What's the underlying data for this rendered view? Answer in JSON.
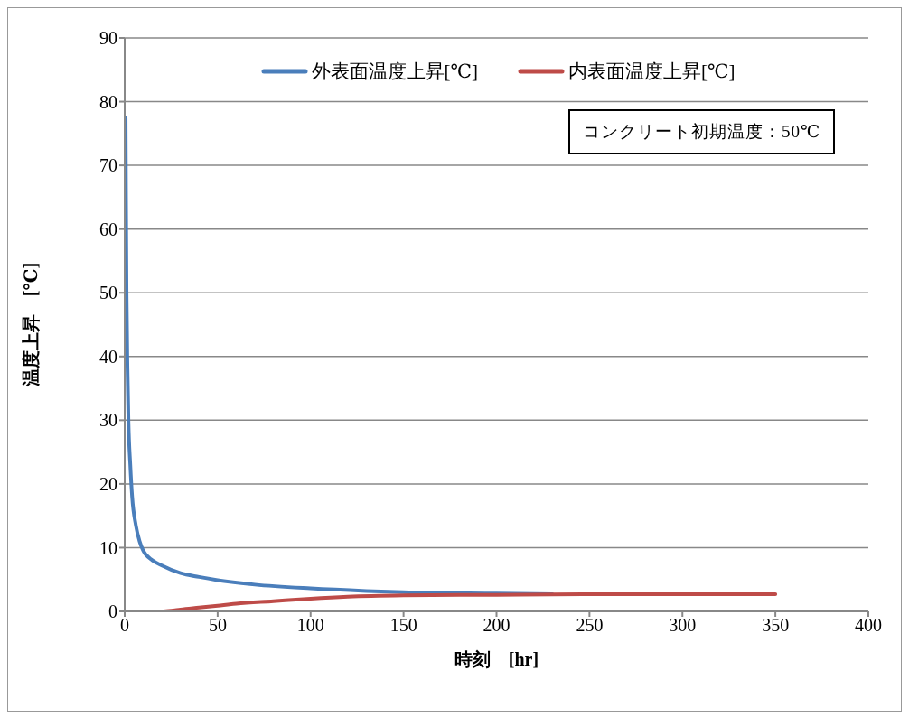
{
  "chart_data": {
    "type": "line",
    "xlabel": "時刻　[hr]",
    "ylabel": "温度上昇　[℃]",
    "annotations": [
      "コンクリート初期温度：50℃"
    ],
    "xlim": [
      0,
      400
    ],
    "xticks": [
      0,
      50,
      100,
      150,
      200,
      250,
      300,
      350,
      400
    ],
    "ylim": [
      0,
      90
    ],
    "yticks": [
      0,
      10,
      20,
      30,
      40,
      50,
      60,
      70,
      80,
      90
    ],
    "grid": "y",
    "legend": "top",
    "marker": "none",
    "line_style": "solid",
    "series": [
      {
        "name": "外表面温度上昇[℃]",
        "color": "#4a7ebb",
        "x": [
          0.5,
          0.7,
          1,
          1.5,
          2,
          3,
          4,
          6,
          8,
          10,
          15,
          20,
          30,
          40,
          50,
          70,
          100,
          130,
          150,
          200,
          230
        ],
        "values": [
          77.5,
          65,
          50,
          38,
          30,
          23,
          18,
          13.5,
          11,
          9.5,
          8,
          7.2,
          6,
          5.4,
          4.9,
          4.2,
          3.6,
          3.2,
          3.0,
          2.8,
          2.7
        ]
      },
      {
        "name": "内表面温度上昇[℃]",
        "color": "#be4b48",
        "x": [
          0,
          10,
          20,
          25,
          30,
          40,
          50,
          60,
          80,
          100,
          120,
          150,
          200,
          250,
          300,
          350
        ],
        "values": [
          0,
          0,
          0,
          0.1,
          0.3,
          0.6,
          0.9,
          1.2,
          1.6,
          2.0,
          2.3,
          2.5,
          2.6,
          2.7,
          2.7,
          2.7
        ]
      }
    ]
  }
}
